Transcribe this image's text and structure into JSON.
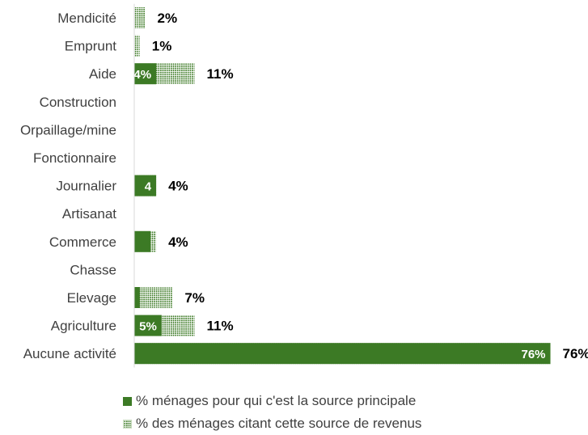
{
  "chart_data": {
    "type": "bar",
    "orientation": "horizontal",
    "categories": [
      "Mendicité",
      "Emprunt",
      "Aide",
      "Construction",
      "Orpaillage/mine",
      "Fonctionnaire",
      "Journalier",
      "Artisanat",
      "Commerce",
      "Chasse",
      "Elevage",
      "Agriculture",
      "Aucune activité"
    ],
    "series": [
      {
        "name": "% ménages pour qui c'est la source principale",
        "values": [
          0,
          0,
          4,
          0,
          0,
          0,
          4,
          0,
          3,
          0,
          1,
          5,
          76
        ],
        "value_labels": [
          "",
          "",
          "4%",
          "",
          "",
          "",
          "4",
          "",
          "",
          "",
          "",
          "5%",
          "76%"
        ],
        "color": "#3c7a25",
        "pattern": "solid"
      },
      {
        "name": "% des ménages citant cette source de revenus",
        "values": [
          2,
          1,
          11,
          0,
          0,
          0,
          4,
          0,
          4,
          0,
          7,
          11,
          76
        ],
        "value_labels": [
          "2%",
          "1%",
          "11%",
          "",
          "",
          "",
          "4%",
          "",
          "4%",
          "",
          "7%",
          "11%",
          "76%"
        ],
        "color": "#3c7a25",
        "pattern": "dotted"
      }
    ],
    "xlim": [
      0,
      76
    ],
    "grid": false,
    "legend_position": "bottom"
  }
}
